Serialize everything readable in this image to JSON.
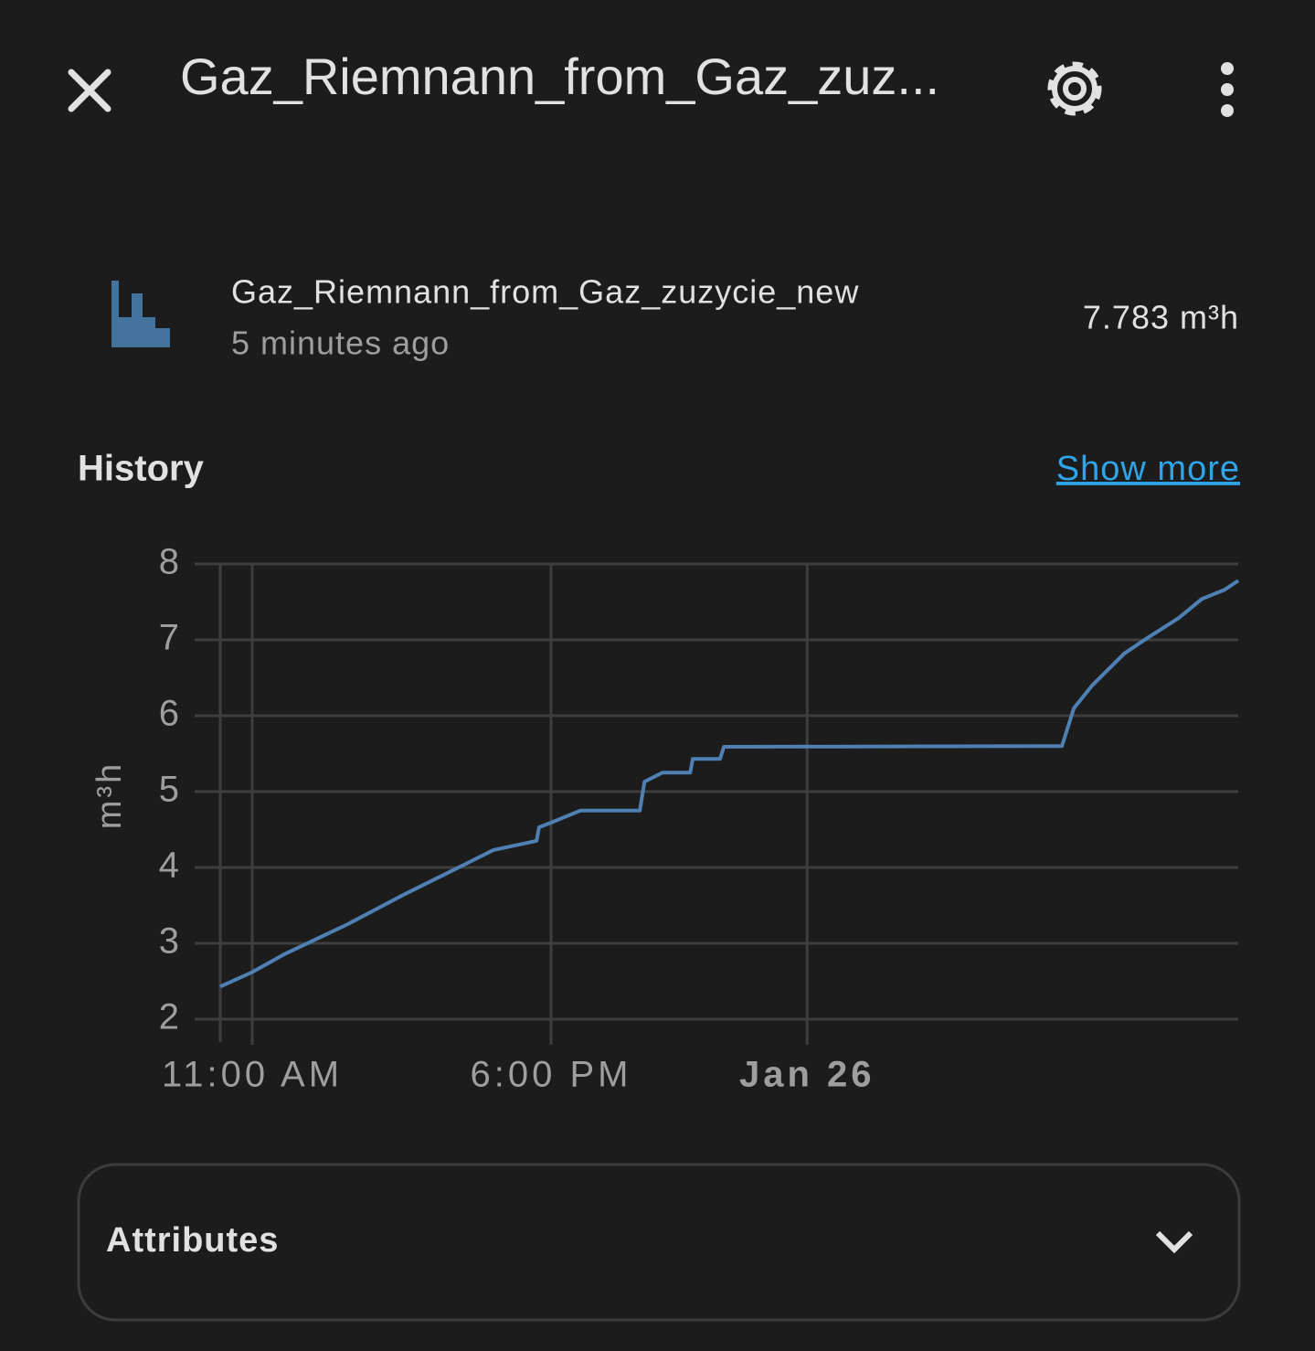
{
  "header": {
    "title": "Gaz_Riemnann_from_Gaz_zuz..."
  },
  "entity": {
    "name": "Gaz_Riemnann_from_Gaz_zuzycie_new",
    "last_changed": "5 minutes ago",
    "state": "7.783 m³h"
  },
  "history": {
    "heading": "History",
    "link": "Show more"
  },
  "chart_data": {
    "type": "line",
    "ylabel": "m³h",
    "x": [
      10.25,
      11,
      11.73,
      12.48,
      13.23,
      14.51,
      15.8,
      16.65,
      17.66,
      17.72,
      18.0,
      18.69,
      20.08,
      20.19,
      20.61,
      21.26,
      21.32,
      21.96,
      22.05,
      29.97,
      30.25,
      30.68,
      31.43,
      31.96,
      32.71,
      33.25,
      33.78,
      34.1
    ],
    "series": [
      {
        "name": "Gaz_Riemnann_from_Gaz_zuzycie_new",
        "color": "#4f80b3",
        "values": [
          2.43,
          2.62,
          2.85,
          3.05,
          3.25,
          3.63,
          3.99,
          4.23,
          4.35,
          4.53,
          4.59,
          4.75,
          4.75,
          5.13,
          5.25,
          5.25,
          5.43,
          5.43,
          5.59,
          5.6,
          6.1,
          6.4,
          6.82,
          7.02,
          7.29,
          7.54,
          7.66,
          7.78
        ]
      }
    ],
    "xlim": [
      10.25,
      34.1
    ],
    "xticks": [
      {
        "value": 11,
        "label": "11:00 AM"
      },
      {
        "value": 18,
        "label": "6:00 PM"
      },
      {
        "value": 24,
        "label": "Jan 26"
      }
    ],
    "ylim": [
      2,
      8
    ],
    "yticks": [
      2,
      3,
      4,
      5,
      6,
      7,
      8
    ],
    "grid": true
  },
  "attributes": {
    "title": "Attributes"
  }
}
